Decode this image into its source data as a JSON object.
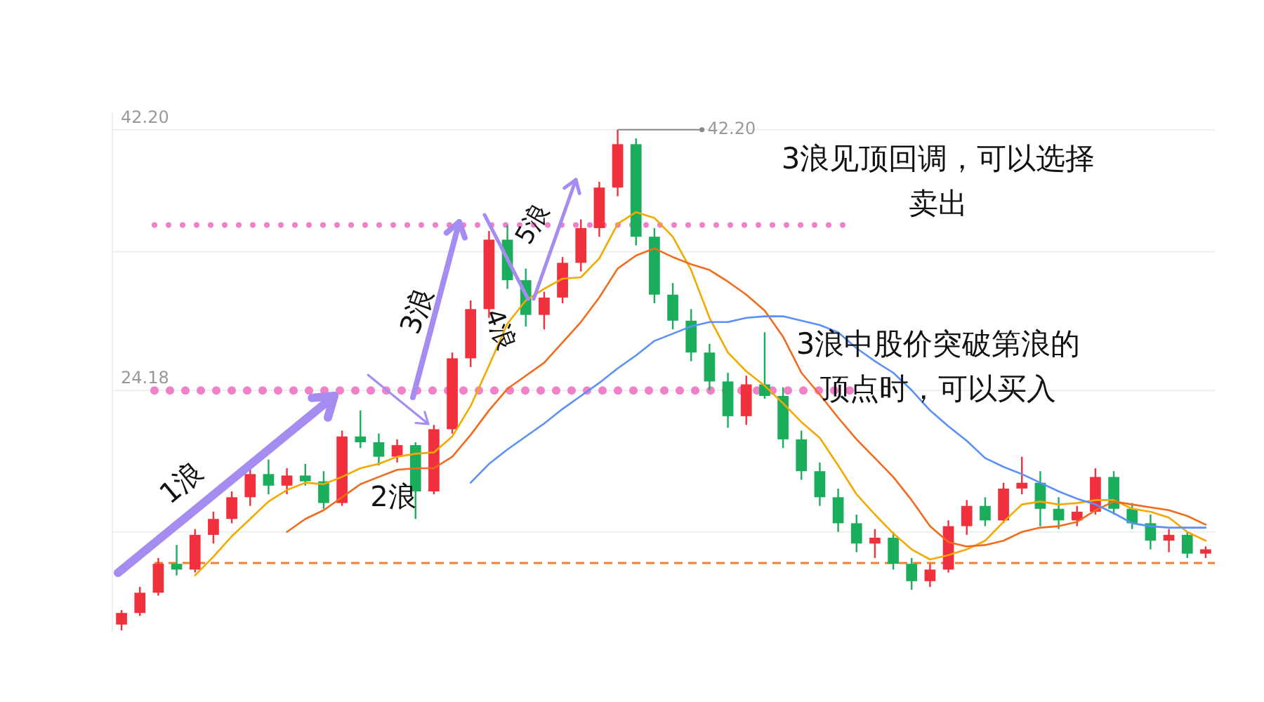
{
  "chart_data": {
    "type": "candlestick",
    "categories": [
      null,
      null,
      null,
      null,
      null,
      null,
      null,
      null,
      null,
      null,
      null,
      null,
      null,
      null,
      null,
      null,
      null,
      null,
      null,
      null,
      null,
      null,
      null,
      null,
      null,
      null,
      null,
      null,
      null,
      null,
      null,
      null,
      null,
      null,
      null,
      null,
      null,
      null,
      null,
      null,
      null,
      null,
      null,
      null,
      null,
      null,
      null,
      null,
      null,
      null,
      null,
      null,
      null,
      null,
      null,
      null,
      null,
      null,
      null,
      null
    ],
    "ohlc": [
      [
        8.0,
        9.0,
        7.6,
        8.8
      ],
      [
        8.8,
        10.6,
        8.6,
        10.2
      ],
      [
        10.2,
        12.6,
        10.0,
        12.2
      ],
      [
        12.2,
        13.5,
        11.4,
        11.8
      ],
      [
        11.8,
        14.6,
        11.6,
        14.2
      ],
      [
        14.2,
        15.8,
        13.6,
        15.3
      ],
      [
        15.3,
        17.2,
        15.0,
        16.8
      ],
      [
        16.8,
        18.9,
        16.2,
        18.4
      ],
      [
        18.4,
        19.4,
        17.0,
        17.6
      ],
      [
        17.6,
        18.8,
        17.0,
        18.3
      ],
      [
        18.3,
        19.1,
        17.6,
        17.9
      ],
      [
        17.9,
        18.6,
        16.0,
        16.4
      ],
      [
        16.4,
        21.4,
        16.2,
        21.0
      ],
      [
        21.0,
        22.8,
        20.2,
        20.6
      ],
      [
        20.6,
        21.2,
        19.0,
        19.6
      ],
      [
        19.6,
        20.8,
        19.2,
        20.4
      ],
      [
        20.4,
        20.6,
        15.3,
        17.2
      ],
      [
        17.2,
        21.8,
        17.0,
        21.5
      ],
      [
        21.5,
        26.8,
        21.2,
        26.4
      ],
      [
        26.4,
        30.4,
        25.8,
        29.8
      ],
      [
        29.8,
        35.2,
        29.2,
        34.6
      ],
      [
        34.6,
        35.6,
        31.2,
        31.8
      ],
      [
        31.8,
        32.6,
        28.6,
        29.4
      ],
      [
        29.4,
        31.0,
        28.4,
        30.6
      ],
      [
        30.6,
        33.4,
        30.2,
        33.0
      ],
      [
        33.0,
        36.0,
        32.4,
        35.4
      ],
      [
        35.4,
        38.6,
        34.8,
        38.2
      ],
      [
        38.2,
        42.2,
        37.6,
        41.2
      ],
      [
        41.2,
        41.6,
        34.2,
        34.8
      ],
      [
        34.8,
        35.4,
        30.2,
        30.8
      ],
      [
        30.8,
        31.6,
        28.4,
        29.0
      ],
      [
        29.0,
        29.8,
        26.2,
        26.8
      ],
      [
        26.8,
        27.4,
        24.2,
        24.8
      ],
      [
        24.8,
        25.4,
        21.6,
        22.4
      ],
      [
        22.4,
        25.2,
        21.8,
        24.6
      ],
      [
        24.6,
        28.2,
        23.6,
        23.8
      ],
      [
        23.8,
        24.4,
        20.2,
        20.8
      ],
      [
        20.8,
        21.4,
        18.0,
        18.6
      ],
      [
        18.6,
        19.2,
        16.2,
        16.8
      ],
      [
        16.8,
        17.4,
        14.4,
        15.0
      ],
      [
        15.0,
        15.6,
        13.0,
        13.6
      ],
      [
        13.6,
        14.6,
        12.6,
        14.0
      ],
      [
        14.0,
        14.4,
        11.8,
        12.2
      ],
      [
        12.2,
        12.6,
        10.4,
        11.0
      ],
      [
        11.0,
        12.2,
        10.6,
        11.8
      ],
      [
        11.8,
        15.2,
        11.6,
        14.8
      ],
      [
        14.8,
        16.6,
        14.2,
        16.2
      ],
      [
        16.2,
        16.8,
        14.8,
        15.2
      ],
      [
        15.2,
        17.8,
        15.0,
        17.4
      ],
      [
        17.4,
        19.6,
        17.0,
        17.8
      ],
      [
        17.8,
        18.6,
        14.8,
        16.0
      ],
      [
        16.0,
        16.8,
        14.6,
        15.2
      ],
      [
        15.2,
        16.2,
        14.8,
        15.8
      ],
      [
        15.8,
        18.8,
        15.6,
        18.2
      ],
      [
        18.2,
        18.6,
        15.6,
        16.0
      ],
      [
        16.0,
        16.4,
        14.6,
        15.0
      ],
      [
        15.0,
        15.6,
        13.2,
        13.8
      ],
      [
        13.8,
        14.6,
        13.0,
        14.2
      ],
      [
        14.2,
        14.4,
        12.6,
        12.9
      ],
      [
        12.9,
        13.4,
        12.6,
        13.2
      ]
    ],
    "colors": [
      "#f0303c",
      "#f0303c",
      "#f0303c",
      "#1aae5c",
      "#f0303c",
      "#f0303c",
      "#f0303c",
      "#f0303c",
      "#1aae5c",
      "#f0303c",
      "#1aae5c",
      "#1aae5c",
      "#f0303c",
      "#1aae5c",
      "#1aae5c",
      "#f0303c",
      "#1aae5c",
      "#f0303c",
      "#f0303c",
      "#f0303c",
      "#f0303c",
      "#1aae5c",
      "#1aae5c",
      "#f0303c",
      "#f0303c",
      "#f0303c",
      "#f0303c",
      "#f0303c",
      "#1aae5c",
      "#1aae5c",
      "#1aae5c",
      "#1aae5c",
      "#1aae5c",
      "#1aae5c",
      "#f0303c",
      "#1aae5c",
      "#1aae5c",
      "#1aae5c",
      "#1aae5c",
      "#1aae5c",
      "#1aae5c",
      "#f0303c",
      "#1aae5c",
      "#1aae5c",
      "#f0303c",
      "#f0303c",
      "#f0303c",
      "#1aae5c",
      "#f0303c",
      "#f0303c",
      "#1aae5c",
      "#1aae5c",
      "#f0303c",
      "#f0303c",
      "#1aae5c",
      "#1aae5c",
      "#1aae5c",
      "#f0303c",
      "#1aae5c",
      "#f0303c"
    ],
    "series": [
      {
        "type": "line",
        "color": "#f5a800",
        "values": [
          null,
          null,
          null,
          null,
          11.4,
          12.7,
          14.1,
          15.3,
          16.5,
          17.3,
          17.8,
          17.7,
          18.2,
          18.8,
          19.1,
          19.6,
          19.8,
          19.9,
          21.0,
          23.1,
          25.9,
          28.8,
          30.4,
          31.2,
          31.9,
          32.0,
          33.3,
          35.7,
          36.5,
          36.1,
          34.8,
          32.5,
          29.2,
          26.8,
          25.5,
          24.5,
          23.3,
          22.0,
          20.9,
          19.0,
          17.0,
          15.6,
          14.3,
          13.2,
          12.5,
          12.8,
          13.2,
          13.8,
          15.1,
          16.3,
          16.5,
          16.3,
          16.4,
          16.6,
          16.6,
          16.0,
          15.8,
          15.4,
          14.4,
          13.8
        ]
      },
      {
        "type": "line",
        "color": "#f26b1d",
        "values": [
          null,
          null,
          null,
          null,
          null,
          null,
          null,
          null,
          null,
          14.4,
          15.3,
          15.9,
          16.8,
          17.7,
          18.2,
          18.7,
          18.8,
          18.8,
          19.6,
          21.1,
          22.8,
          24.3,
          25.2,
          26.1,
          27.5,
          28.9,
          30.6,
          32.6,
          33.5,
          34.0,
          33.4,
          32.9,
          32.5,
          31.7,
          30.8,
          29.7,
          27.9,
          25.4,
          23.9,
          22.3,
          20.8,
          19.5,
          18.2,
          16.6,
          14.8,
          13.7,
          13.4,
          13.5,
          13.8,
          14.4,
          14.7,
          14.8,
          15.1,
          15.9,
          16.5,
          16.3,
          16.1,
          15.9,
          15.5,
          14.9
        ]
      },
      {
        "type": "line",
        "color": "#5b8ff9",
        "values": [
          null,
          null,
          null,
          null,
          null,
          null,
          null,
          null,
          null,
          null,
          null,
          null,
          null,
          null,
          null,
          null,
          null,
          null,
          null,
          17.8,
          19.1,
          20.1,
          21.0,
          21.9,
          22.9,
          23.8,
          24.7,
          25.7,
          26.6,
          27.6,
          28.1,
          28.6,
          28.9,
          28.9,
          29.2,
          29.3,
          29.3,
          29.0,
          28.7,
          28.2,
          27.1,
          26.2,
          25.4,
          24.2,
          22.8,
          21.7,
          20.7,
          19.5,
          18.9,
          18.4,
          17.8,
          17.2,
          16.7,
          16.3,
          15.7,
          15.0,
          14.8,
          14.7,
          14.7,
          14.7
        ]
      }
    ],
    "ylim": [
      7.5,
      43.4
    ],
    "yticks": [
      {
        "value": 42.2,
        "label": "42.20"
      },
      {
        "value": 33.77,
        "label": null
      },
      {
        "value": 24.18,
        "label": "24.18"
      },
      {
        "value": 14.4,
        "label": null
      }
    ],
    "grid": "y",
    "ref_lines": [
      {
        "axis": "y",
        "value": 35.61,
        "color": "#f080c8",
        "line_style": "dotted"
      },
      {
        "axis": "y",
        "value": 24.18,
        "color": "#f080c8",
        "line_style": "dotted"
      },
      {
        "axis": "y",
        "value": 12.26,
        "color": "#f08030",
        "line_style": "dashed"
      }
    ],
    "annotations": [
      "1浪",
      "2浪",
      "3浪",
      "4浪",
      "5浪",
      "42.20",
      "3浪见顶回调，可以选择卖出",
      "3浪中股价突破第浪的顶点时，可以买入"
    ]
  }
}
